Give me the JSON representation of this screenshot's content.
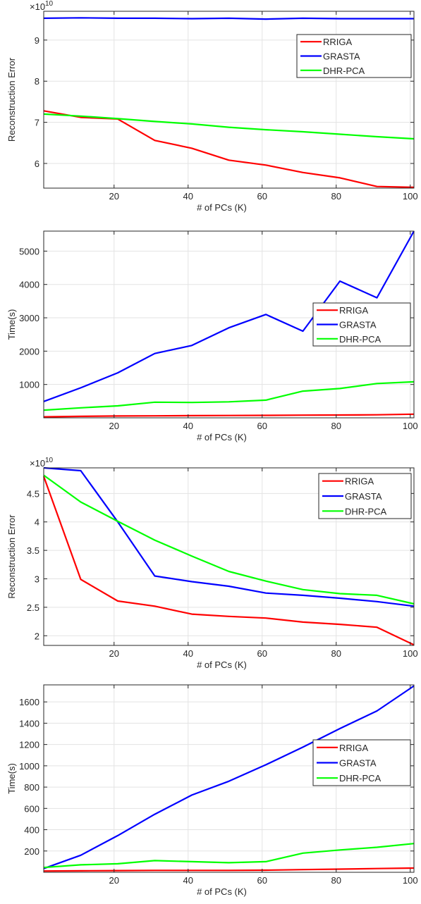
{
  "chart_data": [
    {
      "type": "line",
      "title": "",
      "xlabel": "# of PCs (K)",
      "ylabel": "Reconstruction Error",
      "exponent_label": "×10",
      "exponent_power": "10",
      "xlim": [
        1,
        101
      ],
      "ylim": [
        5.4,
        9.7
      ],
      "xticks": [
        20,
        40,
        60,
        80,
        100
      ],
      "yticks": [
        6,
        7,
        8,
        9
      ],
      "grid": true,
      "legend_position": "top-right",
      "x": [
        1,
        11,
        21,
        31,
        41,
        51,
        61,
        71,
        81,
        91,
        101
      ],
      "series": [
        {
          "name": "RRIGA",
          "color": "#ff0000",
          "values": [
            7.28,
            7.12,
            7.08,
            6.56,
            6.37,
            6.08,
            5.96,
            5.78,
            5.65,
            5.44,
            5.42
          ]
        },
        {
          "name": "GRASTA",
          "color": "#0000ff",
          "values": [
            9.53,
            9.54,
            9.53,
            9.53,
            9.52,
            9.53,
            9.51,
            9.53,
            9.52,
            9.52,
            9.52
          ]
        },
        {
          "name": "DHR-PCA",
          "color": "#00ff00",
          "values": [
            7.2,
            7.15,
            7.09,
            7.02,
            6.96,
            6.88,
            6.82,
            6.77,
            6.71,
            6.65,
            6.6
          ]
        }
      ]
    },
    {
      "type": "line",
      "title": "",
      "xlabel": "# of PCs (K)",
      "ylabel": "Time(s)",
      "xlim": [
        1,
        101
      ],
      "ylim": [
        0,
        5600
      ],
      "xticks": [
        20,
        40,
        60,
        80,
        100
      ],
      "yticks": [
        1000,
        2000,
        3000,
        4000,
        5000
      ],
      "grid": true,
      "legend_position": "middle-right",
      "x": [
        1,
        11,
        21,
        31,
        41,
        51,
        61,
        71,
        81,
        91,
        101
      ],
      "series": [
        {
          "name": "RRIGA",
          "color": "#ff0000",
          "values": [
            30,
            45,
            55,
            60,
            65,
            70,
            75,
            80,
            85,
            90,
            110
          ]
        },
        {
          "name": "GRASTA",
          "color": "#0000ff",
          "values": [
            490,
            900,
            1350,
            1930,
            2170,
            2700,
            3100,
            2600,
            4100,
            3600,
            5600
          ]
        },
        {
          "name": "DHR-PCA",
          "color": "#00ff00",
          "values": [
            230,
            300,
            360,
            470,
            460,
            480,
            530,
            800,
            880,
            1030,
            1080
          ]
        }
      ]
    },
    {
      "type": "line",
      "title": "",
      "xlabel": "# of PCs (K)",
      "ylabel": "Reconstruction Error",
      "exponent_label": "×10",
      "exponent_power": "10",
      "xlim": [
        1,
        101
      ],
      "ylim": [
        1.83,
        4.95
      ],
      "xticks": [
        20,
        40,
        60,
        80,
        100
      ],
      "yticks": [
        2,
        2.5,
        3,
        3.5,
        4,
        4.5
      ],
      "grid": true,
      "legend_position": "top-right",
      "x": [
        1,
        11,
        21,
        31,
        41,
        51,
        61,
        71,
        81,
        91,
        101
      ],
      "series": [
        {
          "name": "RRIGA",
          "color": "#ff0000",
          "values": [
            4.8,
            2.99,
            2.61,
            2.52,
            2.38,
            2.34,
            2.31,
            2.24,
            2.2,
            2.15,
            1.84
          ]
        },
        {
          "name": "GRASTA",
          "color": "#0000ff",
          "values": [
            4.95,
            4.9,
            4.0,
            3.05,
            2.95,
            2.87,
            2.75,
            2.71,
            2.66,
            2.6,
            2.52
          ]
        },
        {
          "name": "DHR-PCA",
          "color": "#00ff00",
          "values": [
            4.82,
            4.35,
            4.01,
            3.68,
            3.4,
            3.13,
            2.96,
            2.81,
            2.74,
            2.71,
            2.56
          ]
        }
      ]
    },
    {
      "type": "line",
      "title": "",
      "xlabel": "# of PCs (K)",
      "ylabel": "Time(s)",
      "xlim": [
        1,
        101
      ],
      "ylim": [
        0,
        1760
      ],
      "xticks": [
        20,
        40,
        60,
        80,
        100
      ],
      "yticks": [
        200,
        400,
        600,
        800,
        1000,
        1200,
        1400,
        1600
      ],
      "grid": true,
      "legend_position": "middle-right",
      "x": [
        1,
        11,
        21,
        31,
        41,
        51,
        61,
        71,
        81,
        91,
        101
      ],
      "series": [
        {
          "name": "RRIGA",
          "color": "#ff0000",
          "values": [
            12,
            14,
            16,
            18,
            18,
            18,
            20,
            25,
            30,
            35,
            40
          ]
        },
        {
          "name": "GRASTA",
          "color": "#0000ff",
          "values": [
            35,
            160,
            345,
            545,
            725,
            855,
            1010,
            1175,
            1350,
            1515,
            1750
          ]
        },
        {
          "name": "DHR-PCA",
          "color": "#00ff00",
          "values": [
            45,
            70,
            80,
            110,
            100,
            90,
            100,
            180,
            210,
            235,
            270
          ]
        }
      ]
    }
  ]
}
